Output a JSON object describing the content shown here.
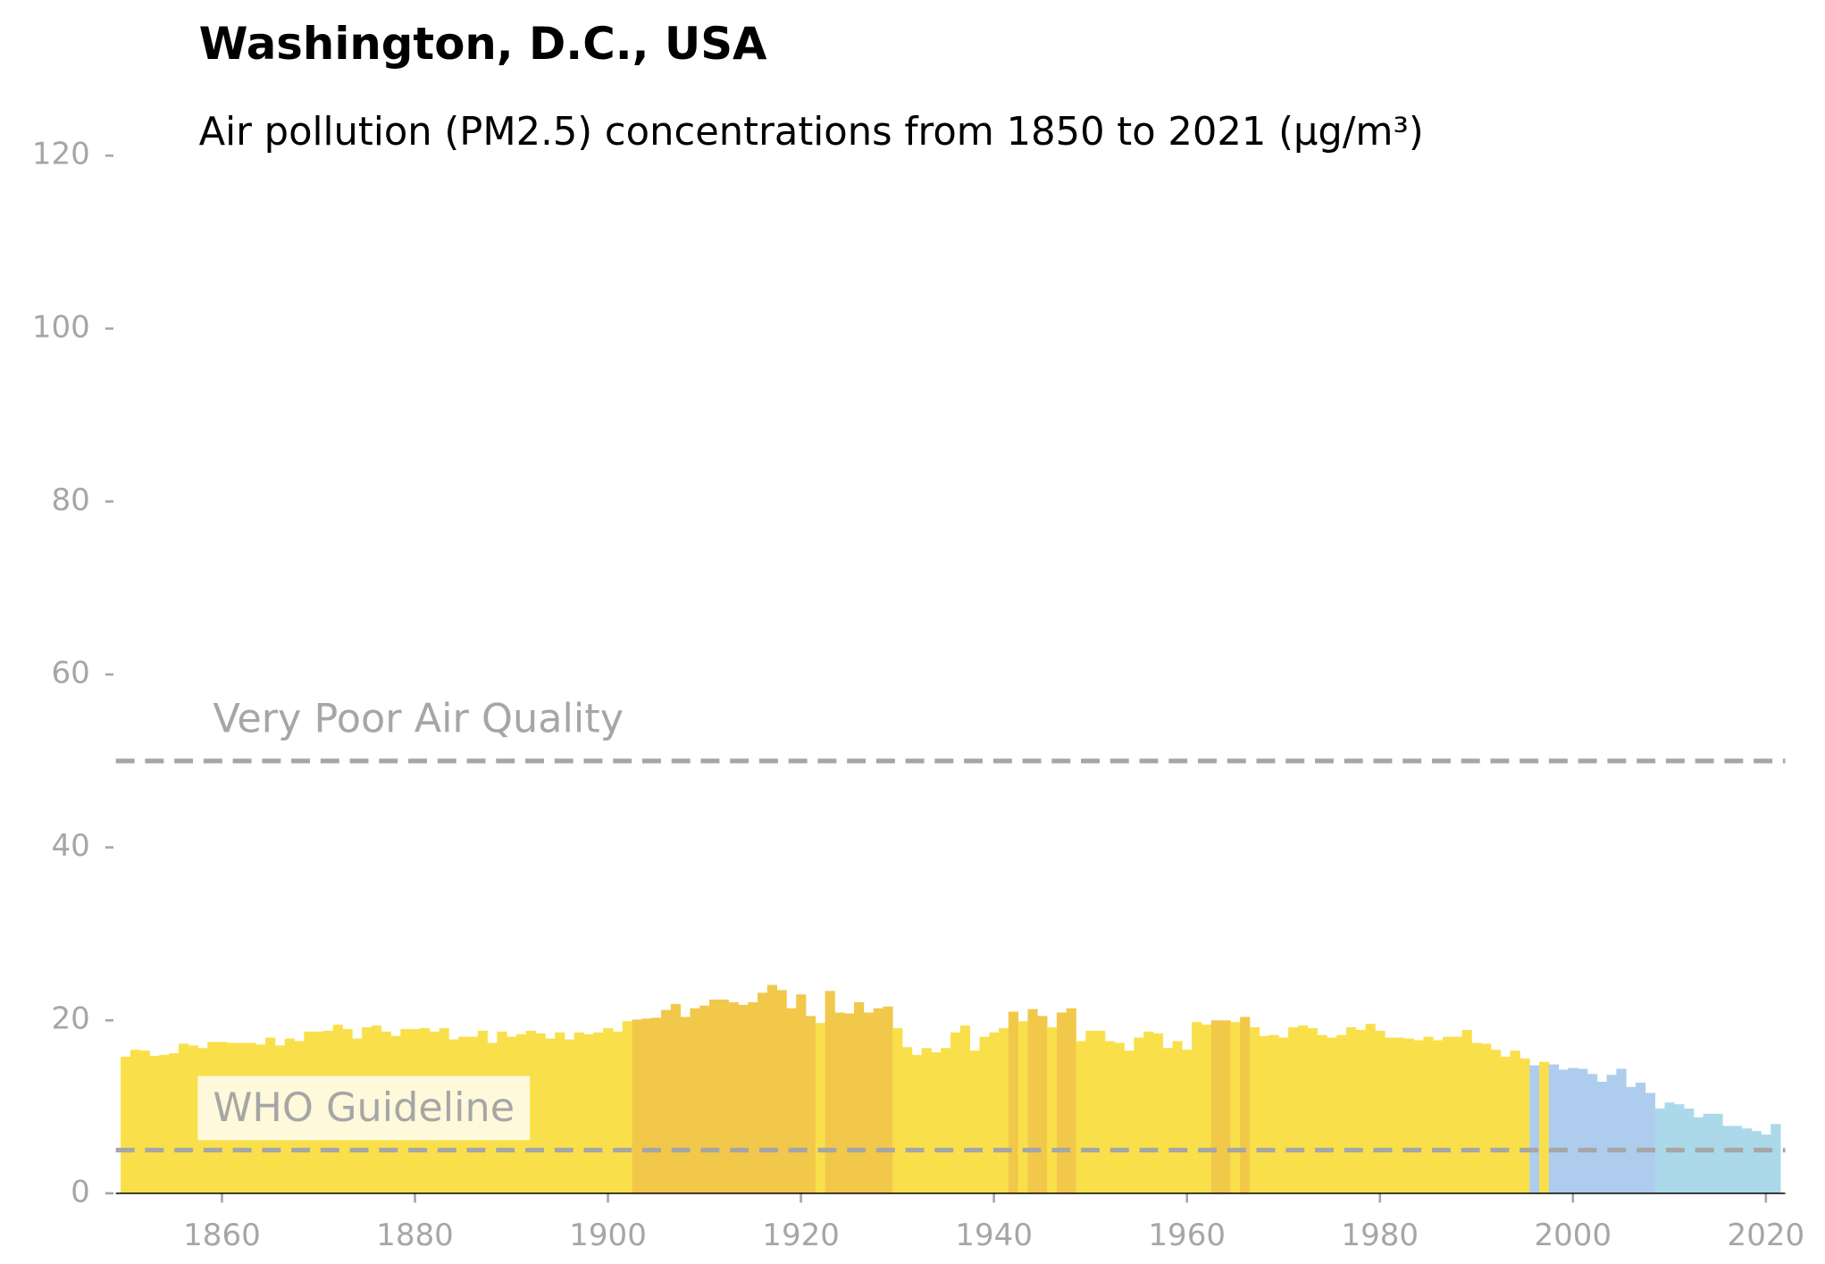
{
  "chart_data": {
    "type": "bar",
    "title": "Washington, D.C., USA",
    "subtitle": "Air pollution (PM2.5) concentrations from 1850 to 2021 (µg/m³)",
    "x": [
      1850,
      1851,
      1852,
      1853,
      1854,
      1855,
      1856,
      1857,
      1858,
      1859,
      1860,
      1861,
      1862,
      1863,
      1864,
      1865,
      1866,
      1867,
      1868,
      1869,
      1870,
      1871,
      1872,
      1873,
      1874,
      1875,
      1876,
      1877,
      1878,
      1879,
      1880,
      1881,
      1882,
      1883,
      1884,
      1885,
      1886,
      1887,
      1888,
      1889,
      1890,
      1891,
      1892,
      1893,
      1894,
      1895,
      1896,
      1897,
      1898,
      1899,
      1900,
      1901,
      1902,
      1903,
      1904,
      1905,
      1906,
      1907,
      1908,
      1909,
      1910,
      1911,
      1912,
      1913,
      1914,
      1915,
      1916,
      1917,
      1918,
      1919,
      1920,
      1921,
      1922,
      1923,
      1924,
      1925,
      1926,
      1927,
      1928,
      1929,
      1930,
      1931,
      1932,
      1933,
      1934,
      1935,
      1936,
      1937,
      1938,
      1939,
      1940,
      1941,
      1942,
      1943,
      1944,
      1945,
      1946,
      1947,
      1948,
      1949,
      1950,
      1951,
      1952,
      1953,
      1954,
      1955,
      1956,
      1957,
      1958,
      1959,
      1960,
      1961,
      1962,
      1963,
      1964,
      1965,
      1966,
      1967,
      1968,
      1969,
      1970,
      1971,
      1972,
      1973,
      1974,
      1975,
      1976,
      1977,
      1978,
      1979,
      1980,
      1981,
      1982,
      1983,
      1984,
      1985,
      1986,
      1987,
      1988,
      1989,
      1990,
      1991,
      1992,
      1993,
      1994,
      1995,
      1996,
      1997,
      1998,
      1999,
      2000,
      2001,
      2002,
      2003,
      2004,
      2005,
      2006,
      2007,
      2008,
      2009,
      2010,
      2011,
      2012,
      2013,
      2014,
      2015,
      2016,
      2017,
      2018,
      2019,
      2020,
      2021
    ],
    "values": [
      15.8,
      16.6,
      16.5,
      15.9,
      16.0,
      16.2,
      17.3,
      17.1,
      16.8,
      17.5,
      17.5,
      17.4,
      17.4,
      17.4,
      17.2,
      18.0,
      17.1,
      17.9,
      17.6,
      18.7,
      18.7,
      18.8,
      19.5,
      19.0,
      17.9,
      19.2,
      19.4,
      18.7,
      18.2,
      19.0,
      19.0,
      19.1,
      18.7,
      19.1,
      17.8,
      18.1,
      18.1,
      18.8,
      17.4,
      18.7,
      18.1,
      18.4,
      18.8,
      18.5,
      17.9,
      18.6,
      17.8,
      18.6,
      18.4,
      18.6,
      19.1,
      18.7,
      19.9,
      20.1,
      20.2,
      20.3,
      21.2,
      21.9,
      20.4,
      21.4,
      21.7,
      22.4,
      22.4,
      22.1,
      21.8,
      22.1,
      23.2,
      24.1,
      23.5,
      21.4,
      23.0,
      20.5,
      19.7,
      23.4,
      20.9,
      20.8,
      22.1,
      20.9,
      21.4,
      21.6,
      19.1,
      16.9,
      16.0,
      16.8,
      16.3,
      16.8,
      18.6,
      19.4,
      16.5,
      18.1,
      18.6,
      19.1,
      21.0,
      19.9,
      21.3,
      20.5,
      19.2,
      20.9,
      21.4,
      17.6,
      18.8,
      18.8,
      17.6,
      17.4,
      16.5,
      18.0,
      18.7,
      18.5,
      16.8,
      17.6,
      16.6,
      19.8,
      19.5,
      20.0,
      20.0,
      19.8,
      20.4,
      19.2,
      18.2,
      18.3,
      18.0,
      19.2,
      19.4,
      19.1,
      18.3,
      18.0,
      18.3,
      19.2,
      18.9,
      19.6,
      18.8,
      18.0,
      18.0,
      17.9,
      17.7,
      18.1,
      17.7,
      18.1,
      18.1,
      18.9,
      17.4,
      17.3,
      16.6,
      15.8,
      16.5,
      15.6,
      14.8,
      15.2,
      14.9,
      14.3,
      14.5,
      14.4,
      13.8,
      12.9,
      13.7,
      14.4,
      12.3,
      12.8,
      11.6,
      9.8,
      10.5,
      10.3,
      9.8,
      8.8,
      9.2,
      9.2,
      7.8,
      7.8,
      7.5,
      7.2,
      6.8,
      8.0
    ],
    "colors": [
      "#f9e04b",
      "#f9e04b",
      "#f9e04b",
      "#f9e04b",
      "#f9e04b",
      "#f9e04b",
      "#f9e04b",
      "#f9e04b",
      "#f9e04b",
      "#f9e04b",
      "#f9e04b",
      "#f9e04b",
      "#f9e04b",
      "#f9e04b",
      "#f9e04b",
      "#f9e04b",
      "#f9e04b",
      "#f9e04b",
      "#f9e04b",
      "#f9e04b",
      "#f9e04b",
      "#f9e04b",
      "#f9e04b",
      "#f9e04b",
      "#f9e04b",
      "#f9e04b",
      "#f9e04b",
      "#f9e04b",
      "#f9e04b",
      "#f9e04b",
      "#f9e04b",
      "#f9e04b",
      "#f9e04b",
      "#f9e04b",
      "#f9e04b",
      "#f9e04b",
      "#f9e04b",
      "#f9e04b",
      "#f9e04b",
      "#f9e04b",
      "#f9e04b",
      "#f9e04b",
      "#f9e04b",
      "#f9e04b",
      "#f9e04b",
      "#f9e04b",
      "#f9e04b",
      "#f9e04b",
      "#f9e04b",
      "#f9e04b",
      "#f9e04b",
      "#f9e04b",
      "#f9e04b",
      "#f2c84b",
      "#f2c84b",
      "#f2c84b",
      "#f2c84b",
      "#f2c84b",
      "#f2c84b",
      "#f2c84b",
      "#f2c84b",
      "#f2c84b",
      "#f2c84b",
      "#f2c84b",
      "#f2c84b",
      "#f2c84b",
      "#f2c84b",
      "#f2c84b",
      "#f2c84b",
      "#f2c84b",
      "#f2c84b",
      "#f2c84b",
      "#f9e04b",
      "#f2c84b",
      "#f2c84b",
      "#f2c84b",
      "#f2c84b",
      "#f2c84b",
      "#f2c84b",
      "#f2c84b",
      "#f9e04b",
      "#f9e04b",
      "#f9e04b",
      "#f9e04b",
      "#f9e04b",
      "#f9e04b",
      "#f9e04b",
      "#f9e04b",
      "#f9e04b",
      "#f9e04b",
      "#f9e04b",
      "#f9e04b",
      "#f2c84b",
      "#f9e04b",
      "#f2c84b",
      "#f2c84b",
      "#f9e04b",
      "#f2c84b",
      "#f2c84b",
      "#f9e04b",
      "#f9e04b",
      "#f9e04b",
      "#f9e04b",
      "#f9e04b",
      "#f9e04b",
      "#f9e04b",
      "#f9e04b",
      "#f9e04b",
      "#f9e04b",
      "#f9e04b",
      "#f9e04b",
      "#f9e04b",
      "#f9e04b",
      "#f2c84b",
      "#f2c84b",
      "#f9e04b",
      "#f2c84b",
      "#f9e04b",
      "#f9e04b",
      "#f9e04b",
      "#f9e04b",
      "#f9e04b",
      "#f9e04b",
      "#f9e04b",
      "#f9e04b",
      "#f9e04b",
      "#f9e04b",
      "#f9e04b",
      "#f9e04b",
      "#f9e04b",
      "#f9e04b",
      "#f9e04b",
      "#f9e04b",
      "#f9e04b",
      "#f9e04b",
      "#f9e04b",
      "#f9e04b",
      "#f9e04b",
      "#f9e04b",
      "#f9e04b",
      "#f9e04b",
      "#f9e04b",
      "#f9e04b",
      "#f9e04b",
      "#f9e04b",
      "#f9e04b",
      "#aecdee",
      "#f9e04b",
      "#aecdee",
      "#aecdee",
      "#aecdee",
      "#aecdee",
      "#aecdee",
      "#aecdee",
      "#aecdee",
      "#aecdee",
      "#aecdee",
      "#aecdee",
      "#aecdee",
      "#abd9e9",
      "#abd9e9",
      "#abd9e9",
      "#abd9e9",
      "#abd9e9",
      "#abd9e9",
      "#abd9e9",
      "#abd9e9",
      "#abd9e9",
      "#abd9e9",
      "#abd9e9",
      "#abd9e9",
      "#abd9e9"
    ],
    "reference_lines": [
      {
        "value": 50,
        "label": "Very Poor Air Quality"
      },
      {
        "value": 5,
        "label": "WHO Guideline"
      }
    ],
    "xlim": [
      1849,
      2022
    ],
    "xticks": [
      1860,
      1880,
      1900,
      1920,
      1940,
      1960,
      1980,
      2000,
      2020
    ],
    "ylim": [
      0,
      120
    ],
    "yticks": [
      0,
      20,
      40,
      60,
      80,
      100,
      120
    ]
  }
}
